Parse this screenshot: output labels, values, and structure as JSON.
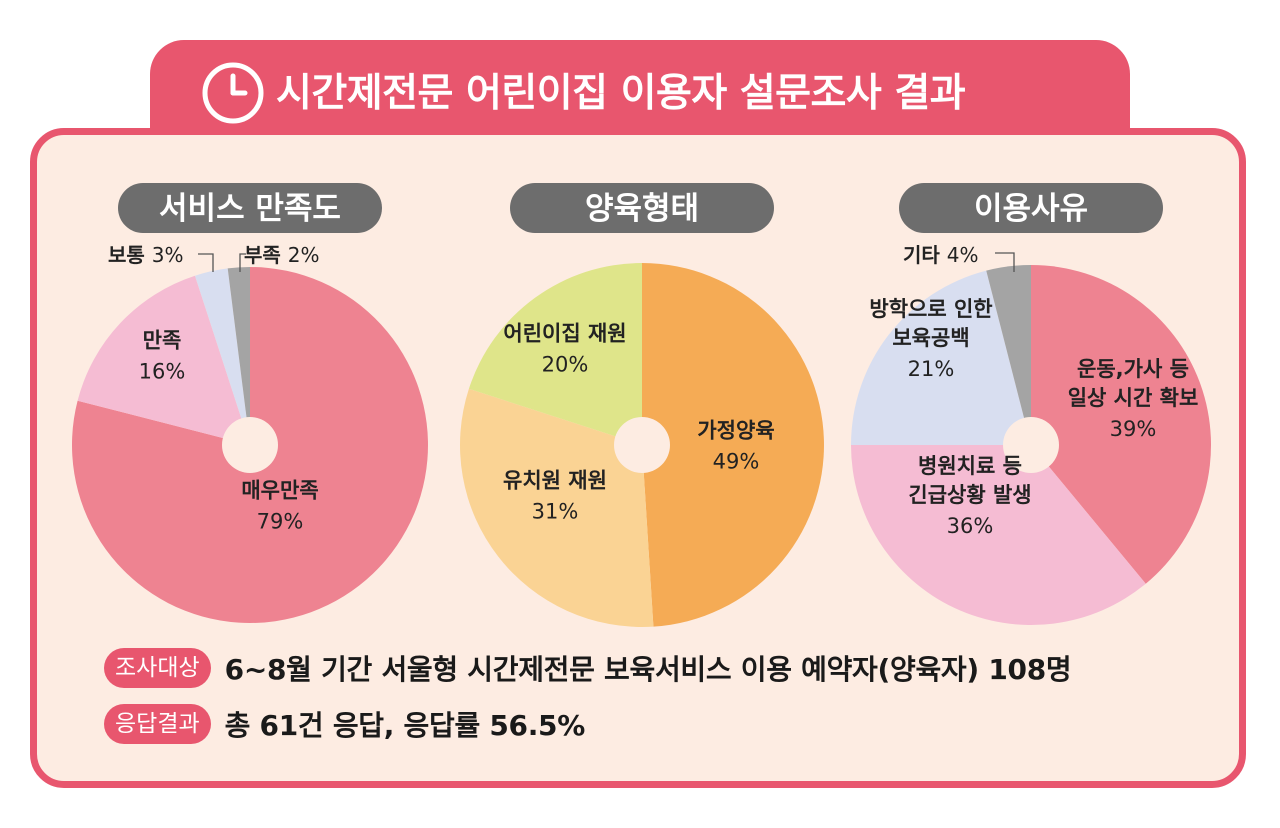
{
  "title": "시간제전문 어린이집 이용자 설문조사 결과",
  "colors": {
    "accent": "#e8566e",
    "panel_bg": "#fdece2",
    "pill_bg": "#6d6d6d"
  },
  "icon": "clock-icon",
  "chart_data": [
    {
      "type": "pie",
      "title": "서비스 만족도",
      "categories": [
        "매우만족",
        "만족",
        "보통",
        "부족"
      ],
      "values": [
        79,
        16,
        3,
        2
      ],
      "value_labels": [
        "79%",
        "16%",
        "3%",
        "2%"
      ],
      "colors": [
        "#ee8391",
        "#f5bcd3",
        "#d8def0",
        "#a4a4a4"
      ]
    },
    {
      "type": "pie",
      "title": "양육형태",
      "categories": [
        "가정양육",
        "유치원 재원",
        "어린이집 재원"
      ],
      "values": [
        49,
        31,
        20
      ],
      "value_labels": [
        "49%",
        "31%",
        "20%"
      ],
      "colors": [
        "#f5ab55",
        "#fad394",
        "#dfe58a"
      ]
    },
    {
      "type": "pie",
      "title": "이용사유",
      "categories": [
        "운동,가사 등 일상 시간 확보",
        "병원치료 등 긴급상황 발생",
        "방학으로 인한 보육공백",
        "기타"
      ],
      "label_lines": [
        [
          "운동,가사 등",
          "일상 시간 확보"
        ],
        [
          "병원치료 등",
          "긴급상황 발생"
        ],
        [
          "방학으로 인한",
          "보육공백"
        ],
        [
          "기타"
        ]
      ],
      "values": [
        39,
        36,
        21,
        4
      ],
      "value_labels": [
        "39%",
        "36%",
        "21%",
        "4%"
      ],
      "colors": [
        "#ee8391",
        "#f5bcd3",
        "#d8def0",
        "#a4a4a4"
      ]
    }
  ],
  "info": [
    {
      "badge": "조사대상",
      "text": "6~8월 기간 서울형 시간제전문 보육서비스 이용 예약자(양육자) 108명"
    },
    {
      "badge": "응답결과",
      "text": "총 61건 응답, 응답률 56.5%"
    }
  ]
}
